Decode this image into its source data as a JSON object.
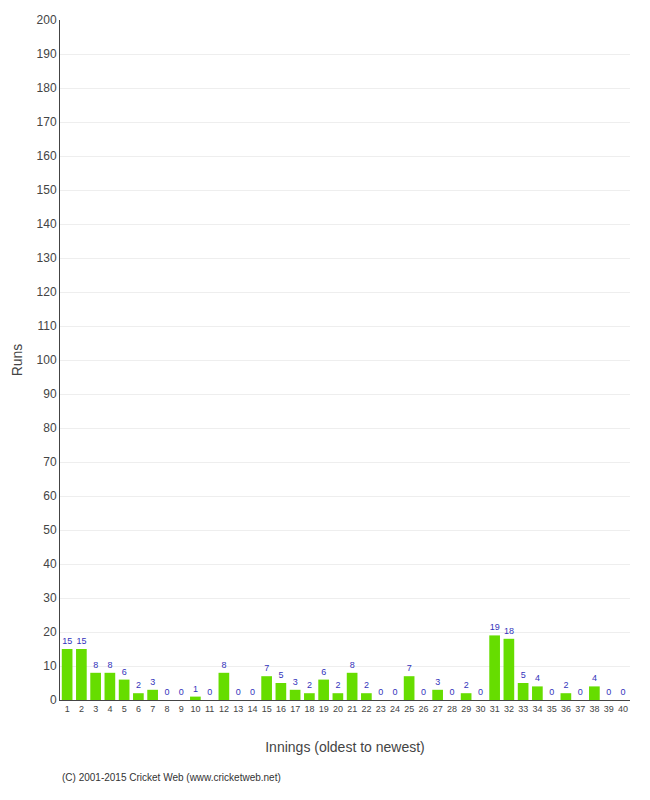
{
  "chart_data": {
    "type": "bar",
    "xlabel": "Innings (oldest to newest)",
    "ylabel": "Runs",
    "categories": [
      "1",
      "2",
      "3",
      "4",
      "5",
      "6",
      "7",
      "8",
      "9",
      "10",
      "11",
      "12",
      "13",
      "14",
      "15",
      "16",
      "17",
      "18",
      "19",
      "20",
      "21",
      "22",
      "23",
      "24",
      "25",
      "26",
      "27",
      "28",
      "29",
      "30",
      "31",
      "32",
      "33",
      "34",
      "35",
      "36",
      "37",
      "38",
      "39",
      "40"
    ],
    "values": [
      15,
      15,
      8,
      8,
      6,
      2,
      3,
      0,
      0,
      1,
      0,
      8,
      0,
      0,
      7,
      5,
      3,
      2,
      6,
      2,
      8,
      2,
      0,
      0,
      7,
      0,
      3,
      0,
      2,
      0,
      19,
      18,
      5,
      4,
      0,
      2,
      0,
      4,
      0,
      0
    ],
    "color": "#66dd00",
    "ylim": [
      0,
      200
    ],
    "yticks": [
      0,
      10,
      20,
      30,
      40,
      50,
      60,
      70,
      80,
      90,
      100,
      110,
      120,
      130,
      140,
      150,
      160,
      170,
      180,
      190,
      200
    ],
    "grid": true,
    "data_labels": true,
    "annotations": [
      "(C) 2001-2015 Cricket Web (www.cricketweb.net)"
    ]
  }
}
